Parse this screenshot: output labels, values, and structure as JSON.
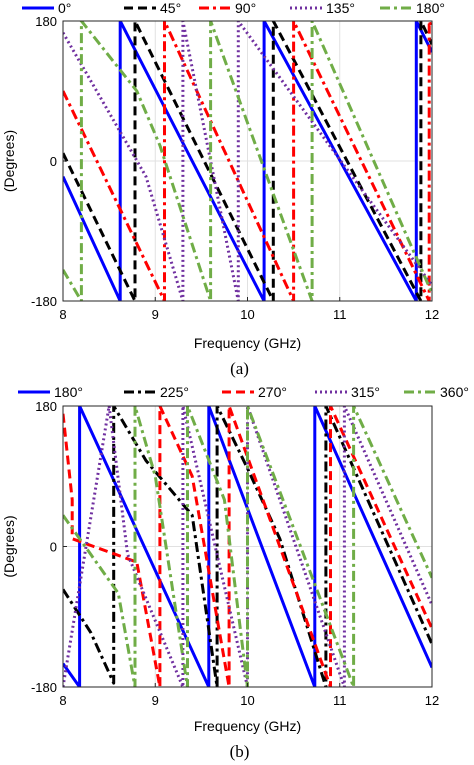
{
  "chart_data": [
    {
      "type": "line",
      "caption": "(a)",
      "xlabel": "Frequency (GHz)",
      "ylabel": "(Degrees)",
      "xlim": [
        8,
        12
      ],
      "ylim": [
        -180,
        180
      ],
      "xticks": [
        "8",
        "9",
        "10",
        "11",
        "12"
      ],
      "yticks": [
        "180",
        "0",
        "-180"
      ],
      "grid": true,
      "legend_position": "top",
      "series": [
        {
          "name": "0°",
          "color": "#0000ff",
          "dash": "solid",
          "x": [
            8,
            8.62,
            8.62,
            10.18,
            10.18,
            11.83,
            11.83,
            12
          ],
          "y": [
            -20,
            -180,
            180,
            -180,
            180,
            -180,
            180,
            140
          ]
        },
        {
          "name": "45°",
          "color": "#000000",
          "dash": "dashed",
          "x": [
            8,
            8.78,
            8.78,
            10.28,
            10.28,
            11.88,
            11.88,
            12
          ],
          "y": [
            10,
            -180,
            180,
            -180,
            180,
            -180,
            180,
            150
          ]
        },
        {
          "name": "90°",
          "color": "#ff0000",
          "dash": "dashdot",
          "x": [
            8,
            9.1,
            9.1,
            10.5,
            10.5,
            11.97,
            11.97,
            12
          ],
          "y": [
            90,
            -180,
            180,
            -180,
            180,
            -180,
            180,
            170
          ]
        },
        {
          "name": "135°",
          "color": "#7030a0",
          "dash": "dotted",
          "x": [
            8,
            8.9,
            9.3,
            9.3,
            9.9,
            9.9,
            12
          ],
          "y": [
            165,
            -20,
            -180,
            180,
            -180,
            180,
            -160
          ]
        },
        {
          "name": "180°",
          "color": "#70ad47",
          "dash": "dashdot",
          "x": [
            8,
            8.2,
            8.2,
            8.8,
            9.05,
            9.6,
            9.6,
            10.7,
            10.7,
            12
          ],
          "y": [
            -140,
            -180,
            180,
            90,
            20,
            -180,
            180,
            -180,
            180,
            -170
          ]
        }
      ]
    },
    {
      "type": "line",
      "caption": "(b)",
      "xlabel": "Frequency (GHz)",
      "ylabel": "(Degrees)",
      "xlim": [
        8,
        12
      ],
      "ylim": [
        -180,
        180
      ],
      "xticks": [
        "8",
        "9",
        "10",
        "11",
        "12"
      ],
      "yticks": [
        "180",
        "0",
        "-180"
      ],
      "grid": true,
      "legend_position": "top",
      "series": [
        {
          "name": "180°",
          "color": "#0000ff",
          "dash": "solid",
          "x": [
            8,
            8.18,
            8.18,
            9.58,
            9.58,
            10.73,
            10.73,
            12
          ],
          "y": [
            -150,
            -180,
            180,
            -180,
            180,
            -180,
            180,
            -155
          ]
        },
        {
          "name": "225°",
          "color": "#000000",
          "dash": "dashdot",
          "x": [
            8,
            8.3,
            8.55,
            8.55,
            8.9,
            9.4,
            9.67,
            9.67,
            10.0,
            10.35,
            10.85,
            10.85,
            12
          ],
          "y": [
            -55,
            -110,
            -175,
            180,
            110,
            40,
            -180,
            180,
            100,
            10,
            -180,
            180,
            -125
          ]
        },
        {
          "name": "270°",
          "color": "#ff0000",
          "dash": "dashed",
          "x": [
            8,
            8.1,
            8.1,
            8.8,
            9.05,
            9.05,
            9.4,
            9.8,
            9.8,
            10.9,
            10.9,
            12
          ],
          "y": [
            170,
            60,
            10,
            -20,
            -180,
            180,
            90,
            -180,
            180,
            -180,
            180,
            -105
          ]
        },
        {
          "name": "315°",
          "color": "#7030a0",
          "dash": "dotted",
          "x": [
            8,
            8.5,
            8.7,
            9.3,
            9.3,
            10.0,
            10.0,
            11.05,
            11.05,
            12
          ],
          "y": [
            -180,
            180,
            -10,
            -180,
            180,
            -180,
            180,
            -180,
            180,
            -75
          ]
        },
        {
          "name": "360°",
          "color": "#70ad47",
          "dash": "dashdot",
          "x": [
            8,
            8.3,
            8.6,
            8.78,
            8.78,
            9.0,
            9.35,
            9.35,
            9.75,
            10.0,
            10.0,
            11.15,
            11.15,
            12
          ],
          "y": [
            40,
            -10,
            -60,
            -180,
            180,
            90,
            -180,
            180,
            60,
            -180,
            180,
            -180,
            180,
            -40
          ]
        }
      ]
    }
  ]
}
